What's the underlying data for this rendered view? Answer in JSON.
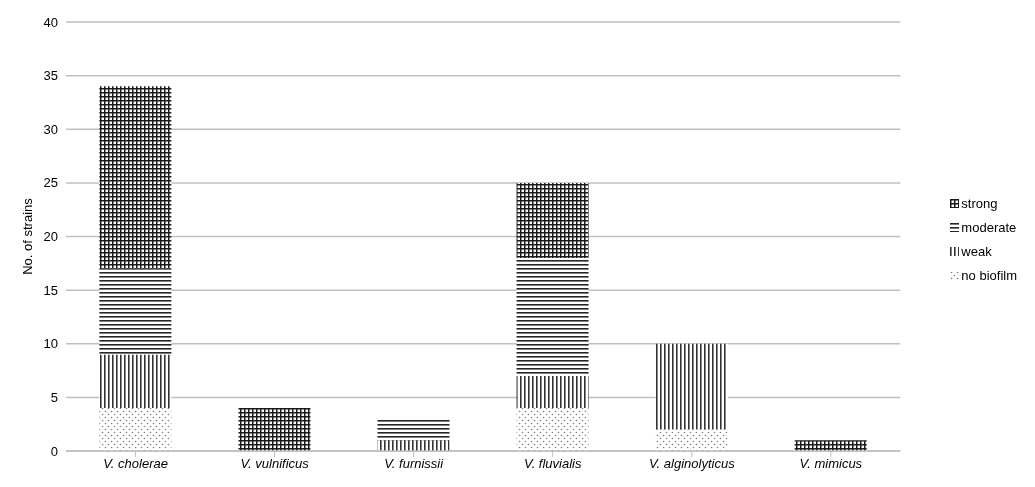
{
  "chart_data": {
    "type": "bar",
    "stacked": true,
    "ylabel": "No. of strains",
    "categories": [
      "V. cholerae",
      "V. vulnificus",
      "V. furnissii",
      "V. fluvialis",
      "V. alginolyticus",
      "V. mimicus"
    ],
    "series": [
      {
        "name": "no biofilm",
        "color": "#7f7f7f",
        "values": [
          4,
          0,
          0,
          4,
          2,
          0
        ]
      },
      {
        "name": "weak",
        "color": "#333333",
        "values": [
          5,
          0,
          1,
          3,
          8,
          0
        ]
      },
      {
        "name": "moderate",
        "color": "#262626",
        "values": [
          8,
          0,
          2,
          11,
          0,
          0
        ]
      },
      {
        "name": "strong",
        "color": "#1a1a1a",
        "values": [
          17,
          4,
          0,
          7,
          0,
          1
        ]
      }
    ],
    "ylim": [
      0,
      40
    ],
    "yticks": [
      0,
      5,
      10,
      15,
      20,
      25,
      30,
      35,
      40
    ],
    "grid": "y",
    "legend": "right"
  }
}
